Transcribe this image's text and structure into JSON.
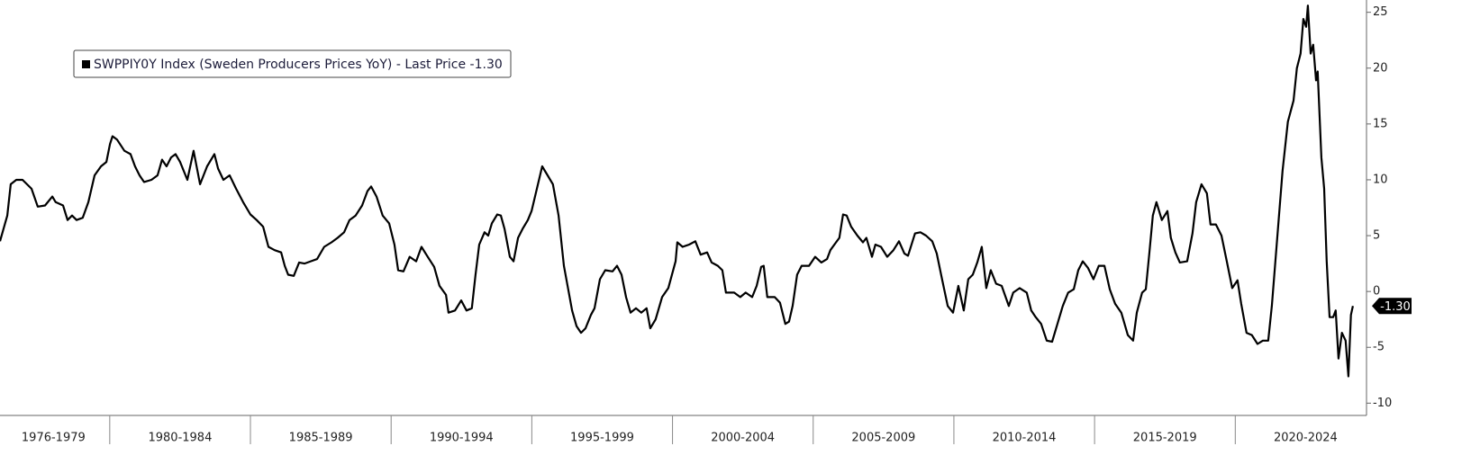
{
  "chart_data": {
    "type": "line",
    "xticks": [
      {
        "value": 1976,
        "label": "1976-1979"
      },
      {
        "value": 1980,
        "label": "1980-1984"
      },
      {
        "value": 1985,
        "label": "1985-1989"
      },
      {
        "value": 1990,
        "label": "1990-1994"
      },
      {
        "value": 1995,
        "label": "1995-1999"
      },
      {
        "value": 2000,
        "label": "2000-2004"
      },
      {
        "value": 2005,
        "label": "2005-2009"
      },
      {
        "value": 2010,
        "label": "2010-2014"
      },
      {
        "value": 2015,
        "label": "2015-2019"
      },
      {
        "value": 2020,
        "label": "2020-2024"
      }
    ],
    "xlim": [
      1976.1,
      2024.6
    ],
    "ylim": [
      -11.1,
      26.1
    ],
    "yticks": [
      25,
      20,
      15,
      10,
      5,
      0,
      -5,
      -10
    ],
    "last_price": {
      "value": -1.3,
      "label": "-1.30"
    },
    "legend": "upper left",
    "x": [
      1976.1,
      1976.36,
      1976.48,
      1976.68,
      1976.9,
      1977.22,
      1977.44,
      1977.7,
      1977.96,
      1978.08,
      1978.34,
      1978.5,
      1978.66,
      1978.82,
      1979.04,
      1979.24,
      1979.46,
      1979.69,
      1979.88,
      1980.01,
      1980.1,
      1980.26,
      1980.52,
      1980.74,
      1980.9,
      1981.06,
      1981.22,
      1981.48,
      1981.7,
      1981.86,
      1982.02,
      1982.18,
      1982.34,
      1982.5,
      1982.76,
      1982.98,
      1983.21,
      1983.46,
      1983.72,
      1983.85,
      1984.04,
      1984.26,
      1984.49,
      1984.74,
      1985.0,
      1985.22,
      1985.45,
      1985.64,
      1985.86,
      1986.09,
      1986.22,
      1986.34,
      1986.54,
      1986.73,
      1986.92,
      1987.14,
      1987.37,
      1987.62,
      1987.88,
      1988.1,
      1988.33,
      1988.52,
      1988.74,
      1988.97,
      1989.16,
      1989.29,
      1989.48,
      1989.7,
      1989.93,
      1990.12,
      1990.25,
      1990.44,
      1990.66,
      1990.89,
      1991.08,
      1991.3,
      1991.53,
      1991.72,
      1991.95,
      1992.04,
      1992.27,
      1992.49,
      1992.68,
      1992.87,
      1993.0,
      1993.13,
      1993.32,
      1993.45,
      1993.58,
      1993.77,
      1993.9,
      1994.03,
      1994.22,
      1994.35,
      1994.51,
      1994.67,
      1994.86,
      1994.99,
      1995.18,
      1995.37,
      1995.56,
      1995.75,
      1995.95,
      1996.14,
      1996.27,
      1996.43,
      1996.59,
      1996.75,
      1996.91,
      1997.1,
      1997.23,
      1997.42,
      1997.61,
      1997.87,
      1998.03,
      1998.19,
      1998.35,
      1998.51,
      1998.7,
      1998.89,
      1999.08,
      1999.21,
      1999.4,
      1999.63,
      1999.85,
      2000.11,
      2000.17,
      2000.36,
      2000.59,
      2000.81,
      2001.0,
      2001.23,
      2001.39,
      2001.61,
      2001.77,
      2001.9,
      2002.19,
      2002.41,
      2002.6,
      2002.83,
      2002.99,
      2003.15,
      2003.24,
      2003.37,
      2003.63,
      2003.82,
      2004.01,
      2004.14,
      2004.27,
      2004.43,
      2004.59,
      2004.85,
      2005.07,
      2005.29,
      2005.49,
      2005.61,
      2005.81,
      2005.93,
      2006.06,
      2006.19,
      2006.35,
      2006.57,
      2006.77,
      2006.89,
      2007.09,
      2007.21,
      2007.41,
      2007.63,
      2007.85,
      2008.05,
      2008.24,
      2008.37,
      2008.62,
      2008.81,
      2009.01,
      2009.23,
      2009.39,
      2009.58,
      2009.78,
      2009.97,
      2010.16,
      2010.35,
      2010.51,
      2010.67,
      2010.83,
      2010.99,
      2011.15,
      2011.31,
      2011.5,
      2011.7,
      2011.95,
      2012.11,
      2012.34,
      2012.59,
      2012.75,
      2012.91,
      2013.1,
      2013.3,
      2013.49,
      2013.68,
      2013.87,
      2014.06,
      2014.26,
      2014.42,
      2014.58,
      2014.77,
      2014.96,
      2015.15,
      2015.35,
      2015.54,
      2015.73,
      2015.95,
      2016.18,
      2016.37,
      2016.5,
      2016.69,
      2016.82,
      2016.95,
      2017.07,
      2017.2,
      2017.39,
      2017.59,
      2017.71,
      2017.87,
      2018.03,
      2018.29,
      2018.48,
      2018.61,
      2018.8,
      2018.99,
      2019.12,
      2019.31,
      2019.51,
      2019.7,
      2019.89,
      2020.08,
      2020.21,
      2020.4,
      2020.59,
      2020.79,
      2020.98,
      2021.17,
      2021.3,
      2021.49,
      2021.68,
      2021.87,
      2022.07,
      2022.19,
      2022.32,
      2022.42,
      2022.52,
      2022.58,
      2022.68,
      2022.77,
      2022.87,
      2022.93,
      2023.06,
      2023.16,
      2023.25,
      2023.35,
      2023.48,
      2023.57,
      2023.67,
      2023.79,
      2023.92,
      2024.02,
      2024.11,
      2024.18
    ],
    "series": [
      {
        "name": "SWPPIY0Y Index (Sweden Producers Prices YoY) - Last Price -1.30",
        "color": "#000000",
        "values": [
          4.5,
          6.8,
          9.6,
          10.0,
          10.0,
          9.2,
          7.6,
          7.7,
          8.5,
          8.0,
          7.7,
          6.4,
          6.8,
          6.4,
          6.6,
          8.0,
          10.4,
          11.2,
          11.6,
          13.2,
          13.9,
          13.6,
          12.6,
          12.3,
          11.2,
          10.4,
          9.8,
          10.0,
          10.4,
          11.8,
          11.2,
          12.0,
          12.3,
          11.6,
          10.0,
          12.6,
          9.6,
          11.2,
          12.3,
          11.0,
          10.0,
          10.4,
          9.2,
          8.0,
          6.9,
          6.4,
          5.8,
          4.0,
          3.7,
          3.5,
          2.3,
          1.5,
          1.4,
          2.6,
          2.5,
          2.7,
          2.9,
          4.0,
          4.4,
          4.8,
          5.3,
          6.4,
          6.8,
          7.7,
          9.0,
          9.4,
          8.5,
          6.8,
          6.1,
          4.2,
          1.9,
          1.8,
          3.1,
          2.7,
          4.0,
          3.1,
          2.2,
          0.5,
          -0.3,
          -1.9,
          -1.7,
          -0.8,
          -1.7,
          -1.5,
          1.5,
          4.2,
          5.3,
          5.0,
          6.1,
          6.9,
          6.8,
          5.6,
          3.1,
          2.7,
          4.8,
          5.6,
          6.4,
          7.2,
          9.2,
          11.2,
          10.4,
          9.6,
          6.8,
          2.3,
          0.5,
          -1.7,
          -3.1,
          -3.7,
          -3.3,
          -2.1,
          -1.5,
          1.1,
          1.9,
          1.8,
          2.3,
          1.5,
          -0.5,
          -1.9,
          -1.5,
          -1.9,
          -1.5,
          -3.3,
          -2.5,
          -0.5,
          0.3,
          2.7,
          4.4,
          4.0,
          4.2,
          4.5,
          3.3,
          3.5,
          2.6,
          2.3,
          1.9,
          -0.1,
          -0.1,
          -0.5,
          -0.1,
          -0.5,
          0.5,
          2.2,
          2.3,
          -0.5,
          -0.5,
          -1.0,
          -2.9,
          -2.7,
          -1.3,
          1.5,
          2.3,
          2.3,
          3.1,
          2.6,
          2.9,
          3.7,
          4.4,
          4.8,
          6.9,
          6.8,
          5.8,
          5.0,
          4.4,
          4.8,
          3.1,
          4.2,
          4.0,
          3.1,
          3.7,
          4.5,
          3.4,
          3.2,
          5.2,
          5.3,
          5.0,
          4.5,
          3.4,
          1.1,
          -1.3,
          -1.9,
          0.5,
          -1.7,
          1.1,
          1.5,
          2.6,
          4.0,
          0.3,
          1.9,
          0.7,
          0.5,
          -1.3,
          -0.1,
          0.3,
          -0.1,
          -1.7,
          -2.3,
          -2.9,
          -4.4,
          -4.5,
          -2.9,
          -1.3,
          -0.1,
          0.2,
          1.9,
          2.7,
          2.1,
          1.1,
          2.3,
          2.3,
          0.2,
          -1.1,
          -1.9,
          -3.9,
          -4.4,
          -1.9,
          -0.1,
          0.2,
          3.5,
          6.8,
          8.0,
          6.4,
          7.2,
          4.8,
          3.5,
          2.6,
          2.7,
          5.2,
          8.0,
          9.6,
          8.8,
          6.0,
          6.0,
          5.0,
          2.7,
          0.3,
          1.0,
          -1.1,
          -3.7,
          -3.9,
          -4.7,
          -4.4,
          -4.4,
          -1.3,
          4.8,
          10.8,
          15.2,
          17.1,
          20.0,
          21.3,
          24.4,
          23.7,
          25.6,
          21.3,
          22.1,
          18.9,
          19.7,
          12.0,
          9.2,
          2.7,
          -2.3,
          -2.3,
          -1.7,
          -6.0,
          -3.7,
          -4.4,
          -7.6,
          -2.1,
          -1.3
        ]
      }
    ]
  }
}
